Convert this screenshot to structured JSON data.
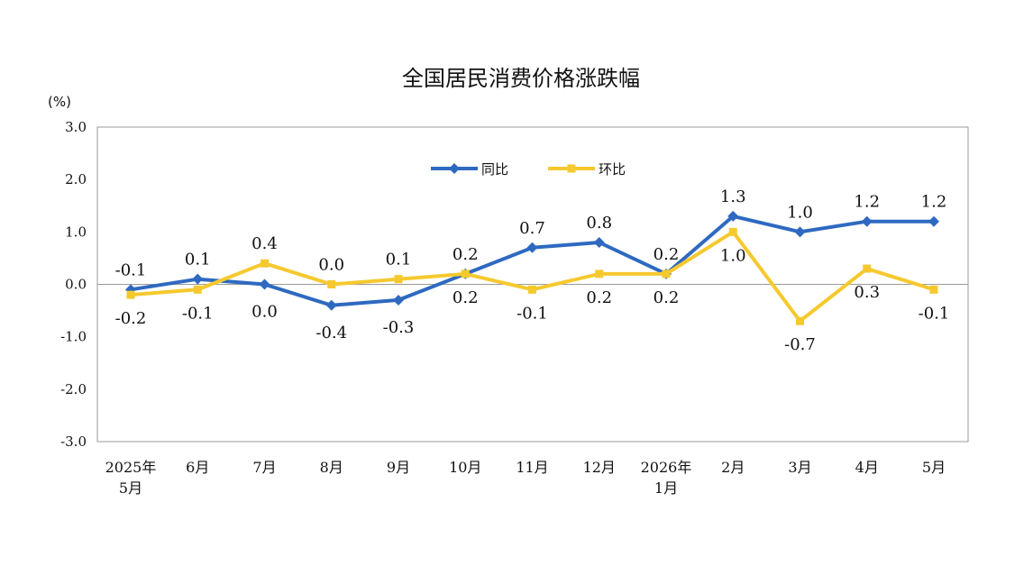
{
  "chart_data": {
    "type": "line",
    "title": "全国居民消费价格涨跌幅",
    "unit_label": "(%)",
    "categories": [
      [
        "2025年",
        "5月"
      ],
      [
        "6月"
      ],
      [
        "7月"
      ],
      [
        "8月"
      ],
      [
        "9月"
      ],
      [
        "10月"
      ],
      [
        "11月"
      ],
      [
        "12月"
      ],
      [
        "2026年",
        "1月"
      ],
      [
        "2月"
      ],
      [
        "3月"
      ],
      [
        "4月"
      ],
      [
        "5月"
      ]
    ],
    "series": [
      {
        "name": "同比",
        "color": "#2e69c1",
        "marker": "diamond",
        "values": [
          -0.1,
          0.1,
          0.0,
          -0.4,
          -0.3,
          0.2,
          0.7,
          0.8,
          0.2,
          1.3,
          1.0,
          1.2,
          1.2
        ],
        "labels": [
          "-0.1",
          "0.1",
          "0.0",
          "-0.4",
          "-0.3",
          "0.2",
          "0.7",
          "0.8",
          "0.2",
          "1.3",
          "1.0",
          "1.2",
          "1.2"
        ]
      },
      {
        "name": "环比",
        "color": "#f5c92e",
        "marker": "square",
        "values": [
          -0.2,
          -0.1,
          0.4,
          0.0,
          0.1,
          0.2,
          -0.1,
          0.2,
          0.2,
          1.0,
          -0.7,
          0.3,
          -0.1
        ],
        "labels": [
          "-0.2",
          "-0.1",
          "0.4",
          "0.0",
          "0.1",
          "0.2",
          "-0.1",
          "0.2",
          "0.2",
          "1.0",
          "-0.7",
          "0.3",
          "-0.1"
        ]
      }
    ],
    "ylim": [
      -3.0,
      3.0
    ],
    "yticks": [
      "3.0",
      "2.0",
      "1.0",
      "0.0",
      "-1.0",
      "-2.0",
      "-3.0"
    ],
    "ytick_values": [
      3,
      2,
      1,
      0,
      -1,
      -2,
      -3
    ],
    "legend_position": "top-center",
    "grid": false
  }
}
